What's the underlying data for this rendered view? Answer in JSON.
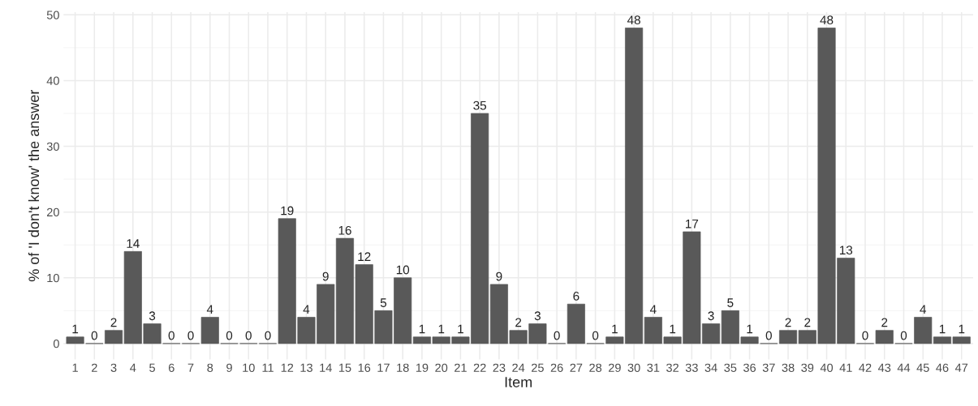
{
  "chart_data": {
    "type": "bar",
    "xlabel": "Item",
    "ylabel": "% of 'I don't know' the answer",
    "categories": [
      "1",
      "2",
      "3",
      "4",
      "5",
      "6",
      "7",
      "8",
      "9",
      "10",
      "11",
      "12",
      "13",
      "14",
      "15",
      "16",
      "17",
      "18",
      "19",
      "20",
      "21",
      "22",
      "23",
      "24",
      "25",
      "26",
      "27",
      "28",
      "29",
      "30",
      "31",
      "32",
      "33",
      "34",
      "35",
      "36",
      "37",
      "38",
      "39",
      "40",
      "41",
      "42",
      "43",
      "44",
      "45",
      "46",
      "47"
    ],
    "values": [
      1,
      0,
      2,
      14,
      3,
      0,
      0,
      4,
      0,
      0,
      0,
      19,
      4,
      9,
      16,
      12,
      5,
      10,
      1,
      1,
      1,
      35,
      9,
      2,
      3,
      0,
      6,
      0,
      1,
      48,
      4,
      1,
      17,
      3,
      5,
      1,
      0,
      2,
      2,
      48,
      13,
      0,
      2,
      0,
      4,
      1,
      1
    ],
    "color": "#595959",
    "ylim": [
      -2.4,
      50.4
    ],
    "yticks": [
      0,
      10,
      20,
      30,
      40,
      50
    ],
    "grid": true,
    "data_labels": true
  }
}
